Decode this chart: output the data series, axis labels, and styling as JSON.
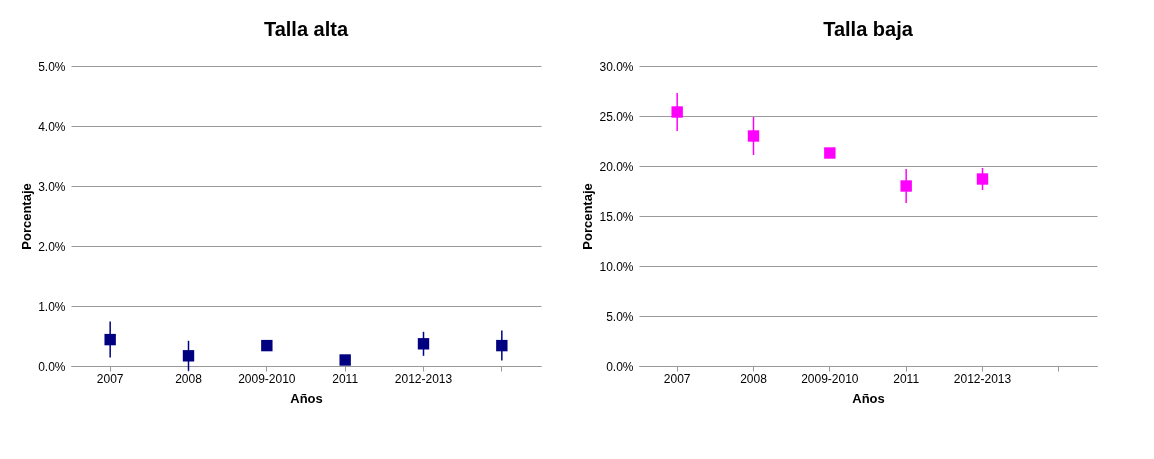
{
  "chart_data": [
    {
      "type": "scatter",
      "title": "Talla alta",
      "xlabel": "Años",
      "ylabel": "Porcentaje",
      "categories": [
        "2007",
        "2008",
        "2009-2010",
        "2011",
        "2012-2013",
        null
      ],
      "series": [
        {
          "color": "#000080",
          "values": [
            0.44,
            0.17,
            0.34,
            0.1,
            0.37,
            0.34
          ],
          "errors": [
            0.3,
            0.25,
            null,
            null,
            0.2,
            0.25
          ]
        }
      ],
      "ylim": [
        0,
        5
      ],
      "yticks": [
        {
          "value": 0,
          "label": "0.0%"
        },
        {
          "value": 1,
          "label": "1.0%"
        },
        {
          "value": 2,
          "label": "2.0%"
        },
        {
          "value": 3,
          "label": "3.0%"
        },
        {
          "value": 4,
          "label": "4.0%"
        },
        {
          "value": 5,
          "label": "5.0%"
        }
      ],
      "grid": "y",
      "marker": "square"
    },
    {
      "type": "scatter",
      "title": "Talla baja",
      "xlabel": "Años",
      "ylabel": "Porcentaje",
      "categories": [
        "2007",
        "2008",
        "2009-2010",
        "2011",
        "2012-2013",
        null
      ],
      "series": [
        {
          "color": "#ff00ff",
          "values": [
            25.4,
            23.0,
            21.3,
            18.0,
            18.7,
            null
          ],
          "errors": [
            1.9,
            1.9,
            null,
            1.7,
            1.1,
            null
          ]
        }
      ],
      "ylim": [
        0,
        30
      ],
      "yticks": [
        {
          "value": 0,
          "label": "0.0%"
        },
        {
          "value": 5,
          "label": "5.0%"
        },
        {
          "value": 10,
          "label": "10.0%"
        },
        {
          "value": 15,
          "label": "15.0%"
        },
        {
          "value": 20,
          "label": "20.0%"
        },
        {
          "value": 25,
          "label": "25.0%"
        },
        {
          "value": 30,
          "label": "30.0%"
        }
      ],
      "grid": "y",
      "marker": "square"
    }
  ]
}
